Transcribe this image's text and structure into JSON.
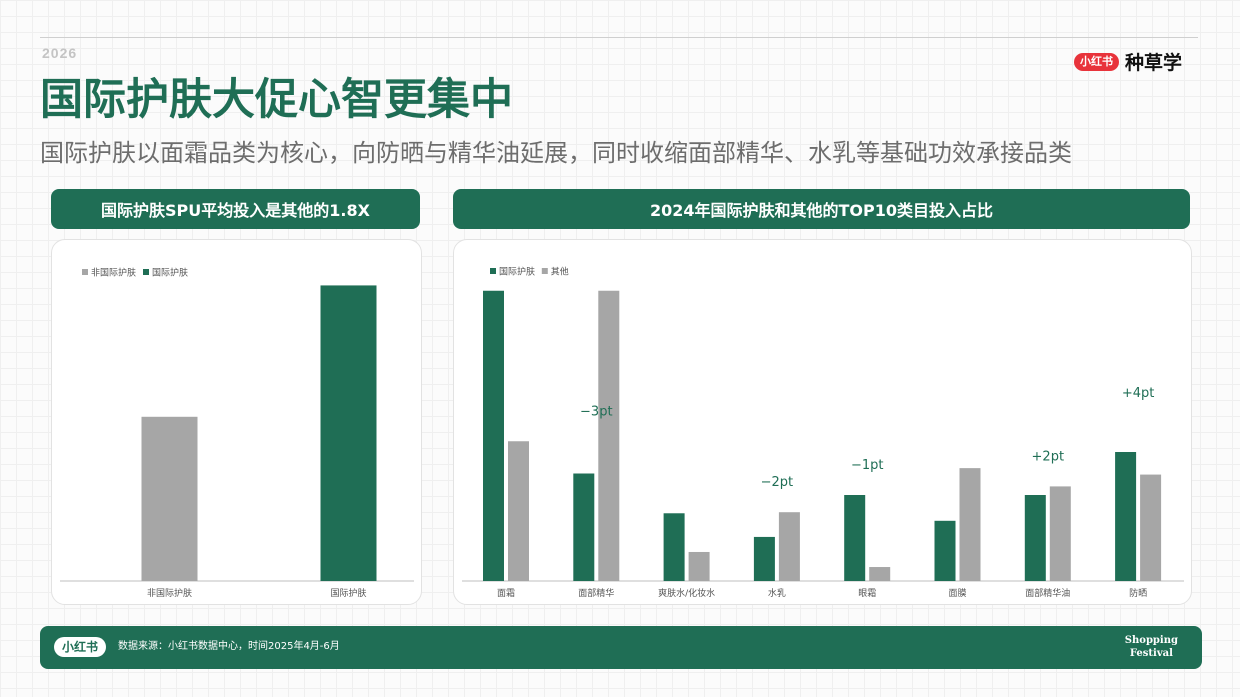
{
  "header": {
    "year": "2026",
    "brand_badge": "小红书",
    "brand_name": "种草学",
    "title": "国际护肤大促心智更集中",
    "subtitle": "国际护肤以面霜品类为核心，向防晒与精华油延展，同时收缩面部精华、水乳等基础功效承接品类"
  },
  "panels": {
    "left_title": "国际护肤SPU平均投入是其他的1.8X",
    "right_title": "2024年国际护肤和其他的TOP10类目投入占比"
  },
  "colors": {
    "green": "#1f6e55",
    "gray": "#a6a6a6"
  },
  "chart_data": [
    {
      "type": "bar",
      "categories": [
        "非国际护肤",
        "国际护肤"
      ],
      "values": [
        1,
        1.8
      ],
      "bar_colors": [
        "#a6a6a6",
        "#1f6e55"
      ],
      "legend": [
        "非国际护肤",
        "国际护肤"
      ],
      "legend_position": "top-left",
      "ylim": [
        0,
        1.9
      ],
      "grid": false
    },
    {
      "type": "bar",
      "categories": [
        "面霜",
        "面部精华",
        "爽肤水/化妆水",
        "水乳",
        "眼霜",
        "面膜",
        "面部精华油",
        "防晒"
      ],
      "series": [
        {
          "name": "国际护肤",
          "color": "#1f6e55",
          "values": [
            27,
            10,
            6.3,
            4.1,
            8,
            5.6,
            8,
            12
          ]
        },
        {
          "name": "其他",
          "color": "#a6a6a6",
          "values": [
            13,
            27,
            2.7,
            6.4,
            1.3,
            10.5,
            8.8,
            9.9
          ]
        }
      ],
      "annotations": [
        {
          "category": "面部精华",
          "text": "−3pt"
        },
        {
          "category": "水乳",
          "text": "−2pt"
        },
        {
          "category": "眼霜",
          "text": "−1pt"
        },
        {
          "category": "面部精华油",
          "text": "+2pt"
        },
        {
          "category": "防晒",
          "text": "+4pt"
        }
      ],
      "legend_position": "top-left",
      "ylim": [
        0,
        28
      ],
      "grid": false
    }
  ],
  "footer": {
    "badge": "小红书",
    "source": "数据来源：小红书数据中心，时间2025年4月-6月",
    "festival_line1": "Shopping",
    "festival_line2": "Festival"
  }
}
